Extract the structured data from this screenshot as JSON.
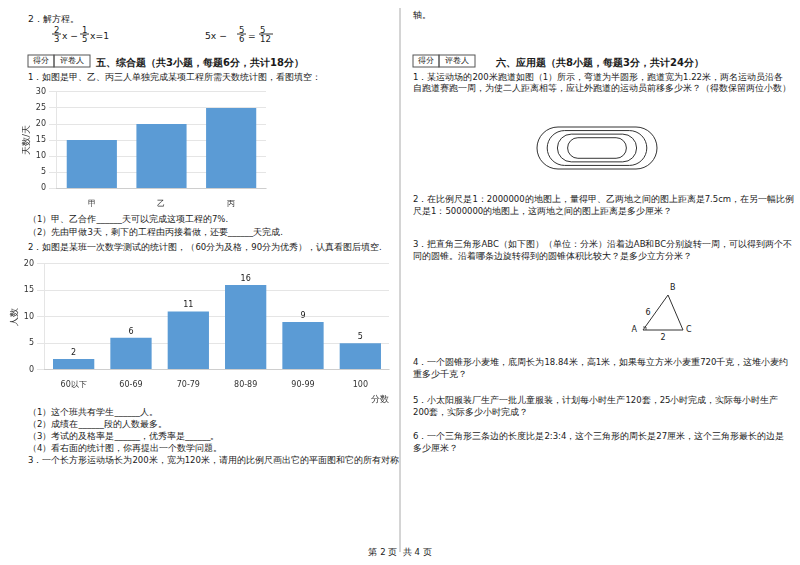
{
  "chart_data": [
    {
      "type": "bar",
      "categories": [
        "甲",
        "乙",
        "丙"
      ],
      "values": [
        15,
        20,
        25
      ],
      "color": "#5b9bd5",
      "ylabel": "天数/天",
      "ylim": [
        0,
        30
      ],
      "yticks": [
        0,
        5,
        10,
        15,
        20,
        25,
        30
      ],
      "grid": true
    },
    {
      "type": "bar",
      "categories": [
        "60以下",
        "60-69",
        "70-79",
        "80-89",
        "90-99",
        "100"
      ],
      "values": [
        2,
        6,
        11,
        16,
        9,
        5
      ],
      "color": "#5b9bd5",
      "xlabel": "分数",
      "ylabel": "人数",
      "ylim": [
        0,
        20
      ],
      "yticks": [
        0,
        5,
        10,
        15,
        20
      ],
      "grid": true,
      "data_labels": true
    }
  ],
  "annotations": [
    "2．解方程。",
    "2",
    "3",
    "x −",
    "1",
    "5",
    "x=1",
    "5x −",
    "5",
    "6",
    "=",
    "5",
    "12",
    "得分",
    "评卷人",
    "五、综合题（共3小题，每题6分，共计18分）",
    "1．如图是甲、乙、丙三人单独完成某项工程所需天数统计图，看图填空：",
    "（1）甲、乙合作______天可以完成这项工程的7%.",
    "（2）先由甲做3天，剩下的工程由丙接着做，还要______天完成.",
    "2．如图是某班一次数学测试的统计图，（60分为及格，90分为优秀），认真看图后填空.",
    "（1）这个班共有学生______人。",
    "（2）成绩在______段的人数最多。",
    "（3）考试的及格率是______，优秀率是______。",
    "（4）看右面的统计图，你再提出一个数学问题。",
    "3．一个长方形运动场长为200米，宽为120米，请用的比例尺画出它的平面图和它的所有对称",
    "轴。",
    "得分",
    "评卷人",
    "六、应用题（共8小题，每题3分，共计24分）",
    "1．某运动场的200米跑道如图（1）所示，弯道为半圆形，跑道宽为1.22米，两名运动员沿各",
    "自跑道赛跑一周，为使二人距离相等，应让外跑道的运动员前移多少米？（得数保留两位小数）",
    "2．在比例尺是1：2000000的地图上，量得甲、乙两地之间的图上距离是7.5cm，在另一幅比例",
    "尺是1：5000000的地图上，这两地之间的图上距离是多少厘米？",
    "3．把直角三角形ABC（如下图）（单位：分米）沿着边AB和BC分别旋转一周，可以得到两个不",
    "同的圆锥。沿着哪条边旋转得到的圆锥体积比较大？是多少立方分米？",
    "B",
    "A",
    "C",
    "6",
    "2",
    "4．一个圆锥形小麦堆，底周长为18.84米，高1米，如果每立方米小麦重720千克，这堆小麦约",
    "重多少千克？",
    "5．小太阳服装厂生产一批儿童服装，计划每小时生产120套，25小时完成，实际每小时生产",
    "200套，实际多少小时完成？",
    "6．一个三角形三条边的长度比是2:3:4，这个三角形的周长是27厘米，这个三角形最长的边是",
    "多少厘米？",
    "第 2 页  共 4 页"
  ]
}
